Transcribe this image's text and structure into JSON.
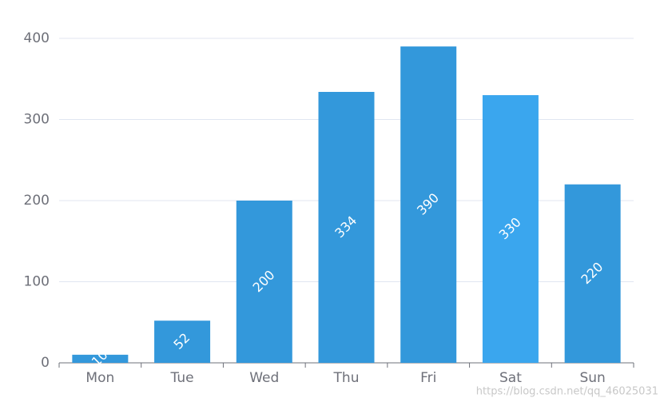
{
  "chart_data": {
    "type": "bar",
    "categories": [
      "Mon",
      "Tue",
      "Wed",
      "Thu",
      "Fri",
      "Sat",
      "Sun"
    ],
    "values": [
      10,
      52,
      200,
      334,
      390,
      330,
      220
    ],
    "colors": [
      "#3398db",
      "#3398db",
      "#3398db",
      "#3398db",
      "#3398db",
      "#3aa6ee",
      "#3398db"
    ],
    "ylim": [
      0,
      400
    ],
    "yticks": [
      0,
      100,
      200,
      300,
      400
    ],
    "grid": true,
    "watermark": "https://blog.csdn.net/qq_46025031"
  }
}
